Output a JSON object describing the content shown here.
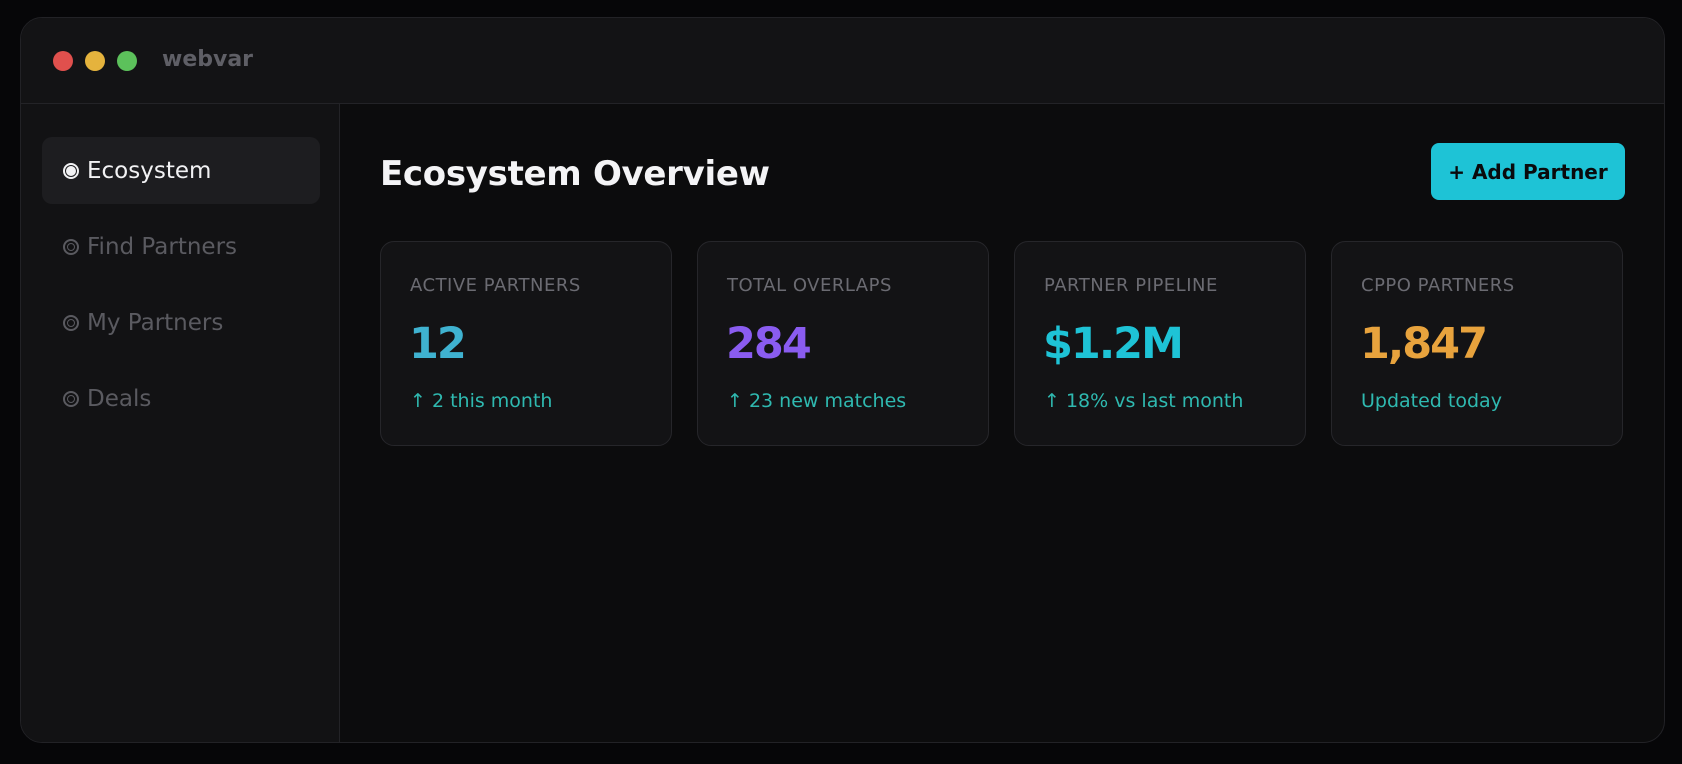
{
  "window": {
    "title": "webvar"
  },
  "sidebar": {
    "items": [
      {
        "label": "Ecosystem",
        "active": true,
        "icon": "radio-selected-icon"
      },
      {
        "label": "Find Partners",
        "active": false,
        "icon": "radio-unselected-icon"
      },
      {
        "label": "My Partners",
        "active": false,
        "icon": "radio-unselected-icon"
      },
      {
        "label": "Deals",
        "active": false,
        "icon": "radio-unselected-icon"
      }
    ]
  },
  "main": {
    "title": "Ecosystem Overview",
    "add_button_label": "+ Add Partner",
    "cards": [
      {
        "label": "ACTIVE PARTNERS",
        "value": "12",
        "sub": "↑ 2 this month",
        "value_color": "#3fb2d0"
      },
      {
        "label": "TOTAL OVERLAPS",
        "value": "284",
        "sub": "↑ 23 new matches",
        "value_color": "#8a5cf0"
      },
      {
        "label": "PARTNER PIPELINE",
        "value": "$1.2M",
        "sub": "↑ 18% vs last month",
        "value_color": "#1ec3d6"
      },
      {
        "label": "CPPO PARTNERS",
        "value": "1,847",
        "sub": "Updated today",
        "value_color": "#e8a33d"
      }
    ]
  },
  "colors": {
    "accent": "#1ec3d6",
    "positive": "#2fb9b0"
  }
}
